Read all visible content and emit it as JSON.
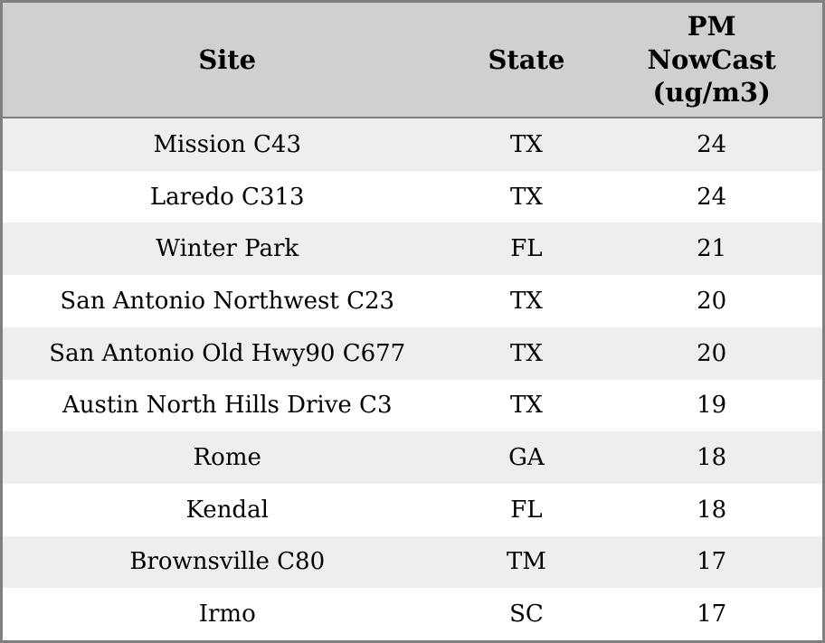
{
  "chart_data": {
    "type": "table",
    "title": "",
    "columns": [
      "Site",
      "State",
      "PM NowCast (ug/m3)"
    ],
    "rows": [
      [
        "Mission C43",
        "TX",
        24
      ],
      [
        "Laredo C313",
        "TX",
        24
      ],
      [
        "Winter Park",
        "FL",
        21
      ],
      [
        "San Antonio Northwest C23",
        "TX",
        20
      ],
      [
        "San Antonio Old Hwy90 C677",
        "TX",
        20
      ],
      [
        "Austin North Hills Drive C3",
        "TX",
        19
      ],
      [
        "Rome",
        "GA",
        18
      ],
      [
        "Kendal",
        "FL",
        18
      ],
      [
        "Brownsville C80",
        "TM",
        17
      ],
      [
        "Irmo",
        "SC",
        17
      ]
    ],
    "layout": {
      "header_bg": "#d0d0d0",
      "row_alt_bg": "#eeeeee",
      "row_bg": "#ffffff",
      "border_color": "#808080",
      "text_color": "#000000"
    }
  },
  "table": {
    "headers": {
      "site": "Site",
      "state": "State",
      "pm": "PM\nNowCast\n(ug/m3)"
    },
    "rows": [
      {
        "site": "Mission C43",
        "state": "TX",
        "pm": "24"
      },
      {
        "site": "Laredo C313",
        "state": "TX",
        "pm": "24"
      },
      {
        "site": "Winter Park",
        "state": "FL",
        "pm": "21"
      },
      {
        "site": "San Antonio Northwest C23",
        "state": "TX",
        "pm": "20"
      },
      {
        "site": "San Antonio Old Hwy90 C677",
        "state": "TX",
        "pm": "20"
      },
      {
        "site": "Austin North Hills Drive C3",
        "state": "TX",
        "pm": "19"
      },
      {
        "site": "Rome",
        "state": "GA",
        "pm": "18"
      },
      {
        "site": "Kendal",
        "state": "FL",
        "pm": "18"
      },
      {
        "site": "Brownsville C80",
        "state": "TM",
        "pm": "17"
      },
      {
        "site": "Irmo",
        "state": "SC",
        "pm": "17"
      }
    ]
  }
}
